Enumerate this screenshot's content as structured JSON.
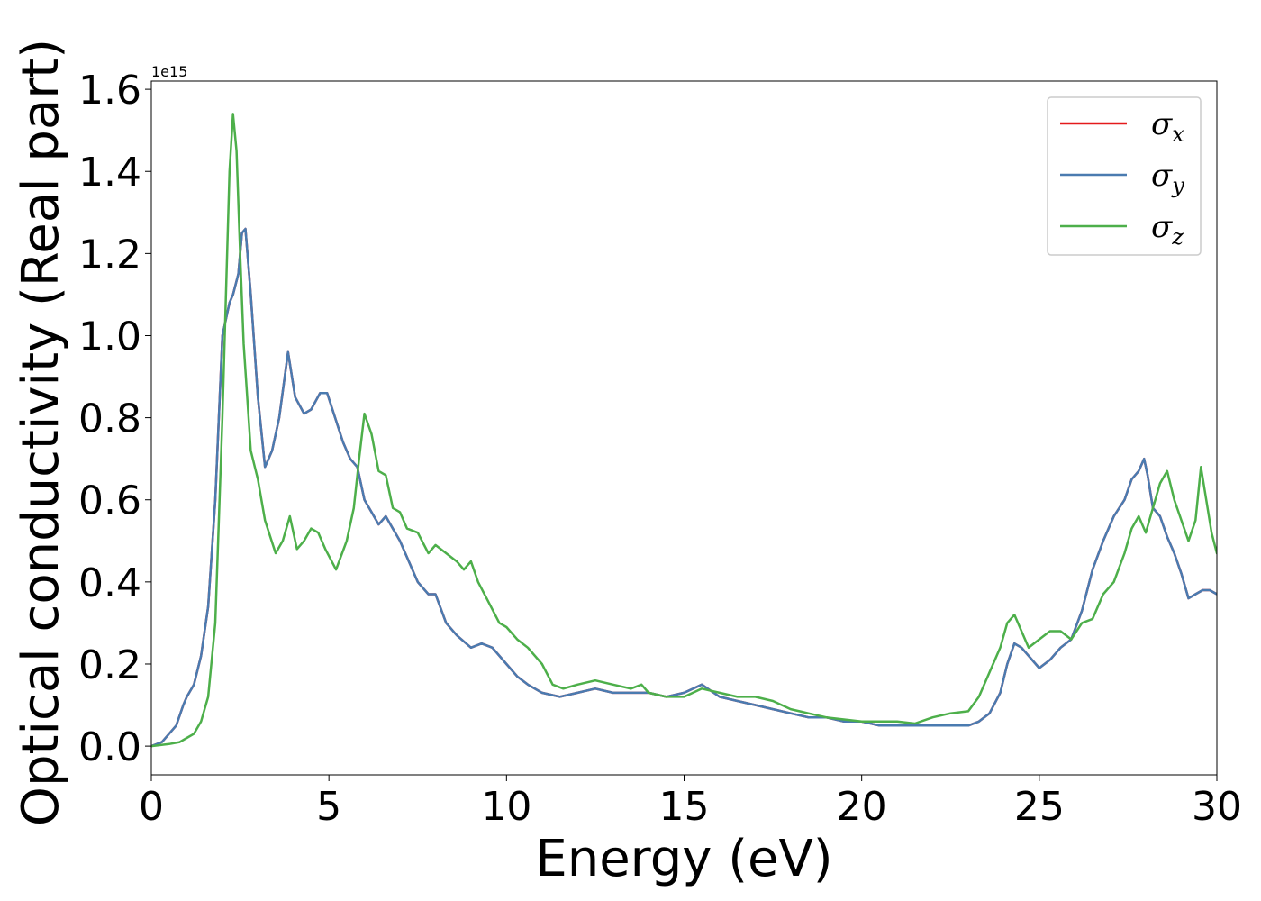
{
  "chart_data": {
    "type": "line",
    "title": "",
    "xlabel": "Energy (eV)",
    "ylabel": "Optical conductivity (Real part)",
    "y_offset_label": "1e15",
    "xlim": [
      0,
      30
    ],
    "ylim": [
      -0.07,
      1.62
    ],
    "xticks": [
      0,
      5,
      10,
      15,
      20,
      25,
      30
    ],
    "xtick_labels": [
      "0",
      "5",
      "10",
      "15",
      "20",
      "25",
      "30"
    ],
    "yticks": [
      0.0,
      0.2,
      0.4,
      0.6,
      0.8,
      1.0,
      1.2,
      1.4,
      1.6
    ],
    "ytick_labels": [
      "0.0",
      "0.2",
      "0.4",
      "0.6",
      "0.8",
      "1.0",
      "1.2",
      "1.4",
      "1.6"
    ],
    "grid": false,
    "legend_position": "top-right",
    "series": [
      {
        "name": "σx",
        "symbol": "σ",
        "subscript": "x",
        "color": "#e41a1c",
        "x": [
          0,
          0.3,
          0.5,
          0.7,
          0.9,
          1.0,
          1.2,
          1.4,
          1.6,
          1.8,
          2.0,
          2.2,
          2.3,
          2.45,
          2.55,
          2.65,
          2.8,
          3.0,
          3.2,
          3.4,
          3.6,
          3.85,
          4.05,
          4.3,
          4.5,
          4.75,
          4.95,
          5.1,
          5.4,
          5.6,
          5.8,
          6.0,
          6.2,
          6.4,
          6.6,
          6.8,
          7.0,
          7.2,
          7.5,
          7.8,
          8.0,
          8.3,
          8.6,
          9.0,
          9.3,
          9.6,
          10.0,
          10.3,
          10.6,
          11.0,
          11.5,
          12.0,
          12.5,
          13.0,
          13.5,
          14.0,
          14.5,
          15.0,
          15.5,
          16.0,
          16.5,
          17.0,
          17.5,
          18.0,
          18.5,
          19.0,
          19.5,
          20.0,
          20.5,
          21.0,
          21.5,
          22.0,
          22.5,
          23.0,
          23.3,
          23.6,
          23.9,
          24.1,
          24.3,
          24.5,
          24.7,
          25.0,
          25.3,
          25.6,
          25.9,
          26.2,
          26.5,
          26.8,
          27.1,
          27.4,
          27.6,
          27.8,
          27.95,
          28.05,
          28.2,
          28.4,
          28.6,
          28.8,
          29.0,
          29.2,
          29.4,
          29.6,
          29.8,
          30.0
        ],
        "y": [
          0.0,
          0.01,
          0.03,
          0.05,
          0.1,
          0.12,
          0.15,
          0.22,
          0.34,
          0.6,
          1.0,
          1.08,
          1.1,
          1.15,
          1.25,
          1.26,
          1.1,
          0.85,
          0.68,
          0.72,
          0.8,
          0.96,
          0.85,
          0.81,
          0.82,
          0.86,
          0.86,
          0.82,
          0.74,
          0.7,
          0.68,
          0.6,
          0.57,
          0.54,
          0.56,
          0.53,
          0.5,
          0.46,
          0.4,
          0.37,
          0.37,
          0.3,
          0.27,
          0.24,
          0.25,
          0.24,
          0.2,
          0.17,
          0.15,
          0.13,
          0.12,
          0.13,
          0.14,
          0.13,
          0.13,
          0.13,
          0.12,
          0.13,
          0.15,
          0.12,
          0.11,
          0.1,
          0.09,
          0.08,
          0.07,
          0.07,
          0.06,
          0.06,
          0.05,
          0.05,
          0.05,
          0.05,
          0.05,
          0.05,
          0.06,
          0.08,
          0.13,
          0.2,
          0.25,
          0.24,
          0.22,
          0.19,
          0.21,
          0.24,
          0.26,
          0.33,
          0.43,
          0.5,
          0.56,
          0.6,
          0.65,
          0.67,
          0.7,
          0.66,
          0.58,
          0.56,
          0.51,
          0.47,
          0.42,
          0.36,
          0.37,
          0.38,
          0.38,
          0.37
        ]
      },
      {
        "name": "σy",
        "symbol": "σ",
        "subscript": "y",
        "color": "#4a7bb0",
        "x": [
          0,
          0.3,
          0.5,
          0.7,
          0.9,
          1.0,
          1.2,
          1.4,
          1.6,
          1.8,
          2.0,
          2.2,
          2.3,
          2.45,
          2.55,
          2.65,
          2.8,
          3.0,
          3.2,
          3.4,
          3.6,
          3.85,
          4.05,
          4.3,
          4.5,
          4.75,
          4.95,
          5.1,
          5.4,
          5.6,
          5.8,
          6.0,
          6.2,
          6.4,
          6.6,
          6.8,
          7.0,
          7.2,
          7.5,
          7.8,
          8.0,
          8.3,
          8.6,
          9.0,
          9.3,
          9.6,
          10.0,
          10.3,
          10.6,
          11.0,
          11.5,
          12.0,
          12.5,
          13.0,
          13.5,
          14.0,
          14.5,
          15.0,
          15.5,
          16.0,
          16.5,
          17.0,
          17.5,
          18.0,
          18.5,
          19.0,
          19.5,
          20.0,
          20.5,
          21.0,
          21.5,
          22.0,
          22.5,
          23.0,
          23.3,
          23.6,
          23.9,
          24.1,
          24.3,
          24.5,
          24.7,
          25.0,
          25.3,
          25.6,
          25.9,
          26.2,
          26.5,
          26.8,
          27.1,
          27.4,
          27.6,
          27.8,
          27.95,
          28.05,
          28.2,
          28.4,
          28.6,
          28.8,
          29.0,
          29.2,
          29.4,
          29.6,
          29.8,
          30.0
        ],
        "y": [
          0.0,
          0.01,
          0.03,
          0.05,
          0.1,
          0.12,
          0.15,
          0.22,
          0.34,
          0.6,
          1.0,
          1.08,
          1.1,
          1.15,
          1.25,
          1.26,
          1.1,
          0.85,
          0.68,
          0.72,
          0.8,
          0.96,
          0.85,
          0.81,
          0.82,
          0.86,
          0.86,
          0.82,
          0.74,
          0.7,
          0.68,
          0.6,
          0.57,
          0.54,
          0.56,
          0.53,
          0.5,
          0.46,
          0.4,
          0.37,
          0.37,
          0.3,
          0.27,
          0.24,
          0.25,
          0.24,
          0.2,
          0.17,
          0.15,
          0.13,
          0.12,
          0.13,
          0.14,
          0.13,
          0.13,
          0.13,
          0.12,
          0.13,
          0.15,
          0.12,
          0.11,
          0.1,
          0.09,
          0.08,
          0.07,
          0.07,
          0.06,
          0.06,
          0.05,
          0.05,
          0.05,
          0.05,
          0.05,
          0.05,
          0.06,
          0.08,
          0.13,
          0.2,
          0.25,
          0.24,
          0.22,
          0.19,
          0.21,
          0.24,
          0.26,
          0.33,
          0.43,
          0.5,
          0.56,
          0.6,
          0.65,
          0.67,
          0.7,
          0.66,
          0.58,
          0.56,
          0.51,
          0.47,
          0.42,
          0.36,
          0.37,
          0.38,
          0.38,
          0.37
        ]
      },
      {
        "name": "σz",
        "symbol": "σ",
        "subscript": "z",
        "color": "#4daf4a",
        "x": [
          0,
          0.5,
          0.8,
          1.0,
          1.2,
          1.4,
          1.6,
          1.8,
          2.0,
          2.2,
          2.3,
          2.4,
          2.5,
          2.6,
          2.8,
          3.0,
          3.2,
          3.5,
          3.7,
          3.9,
          4.1,
          4.3,
          4.5,
          4.7,
          4.9,
          5.2,
          5.5,
          5.7,
          5.85,
          6.0,
          6.2,
          6.4,
          6.6,
          6.8,
          7.0,
          7.2,
          7.5,
          7.8,
          8.0,
          8.3,
          8.6,
          8.8,
          9.0,
          9.2,
          9.5,
          9.8,
          10.0,
          10.3,
          10.6,
          11.0,
          11.3,
          11.6,
          12.0,
          12.5,
          13.0,
          13.5,
          13.8,
          14.0,
          14.5,
          15.0,
          15.5,
          16.0,
          16.5,
          17.0,
          17.5,
          18.0,
          18.5,
          19.0,
          19.5,
          20.0,
          20.5,
          21.0,
          21.5,
          22.0,
          22.5,
          23.0,
          23.3,
          23.6,
          23.9,
          24.1,
          24.3,
          24.5,
          24.7,
          25.0,
          25.3,
          25.6,
          25.9,
          26.2,
          26.5,
          26.8,
          27.1,
          27.4,
          27.6,
          27.8,
          28.0,
          28.2,
          28.4,
          28.6,
          28.8,
          29.0,
          29.2,
          29.4,
          29.55,
          29.7,
          29.85,
          30.0
        ],
        "y": [
          0.0,
          0.005,
          0.01,
          0.02,
          0.03,
          0.06,
          0.12,
          0.3,
          0.8,
          1.4,
          1.54,
          1.45,
          1.2,
          0.98,
          0.72,
          0.65,
          0.55,
          0.47,
          0.5,
          0.56,
          0.48,
          0.5,
          0.53,
          0.52,
          0.48,
          0.43,
          0.5,
          0.58,
          0.7,
          0.81,
          0.76,
          0.67,
          0.66,
          0.58,
          0.57,
          0.53,
          0.52,
          0.47,
          0.49,
          0.47,
          0.45,
          0.43,
          0.45,
          0.4,
          0.35,
          0.3,
          0.29,
          0.26,
          0.24,
          0.2,
          0.15,
          0.14,
          0.15,
          0.16,
          0.15,
          0.14,
          0.15,
          0.13,
          0.12,
          0.12,
          0.14,
          0.13,
          0.12,
          0.12,
          0.11,
          0.09,
          0.08,
          0.07,
          0.065,
          0.06,
          0.06,
          0.06,
          0.055,
          0.07,
          0.08,
          0.085,
          0.12,
          0.18,
          0.24,
          0.3,
          0.32,
          0.28,
          0.24,
          0.26,
          0.28,
          0.28,
          0.26,
          0.3,
          0.31,
          0.37,
          0.4,
          0.47,
          0.53,
          0.56,
          0.52,
          0.58,
          0.64,
          0.67,
          0.6,
          0.55,
          0.5,
          0.55,
          0.68,
          0.6,
          0.52,
          0.47
        ]
      }
    ]
  }
}
